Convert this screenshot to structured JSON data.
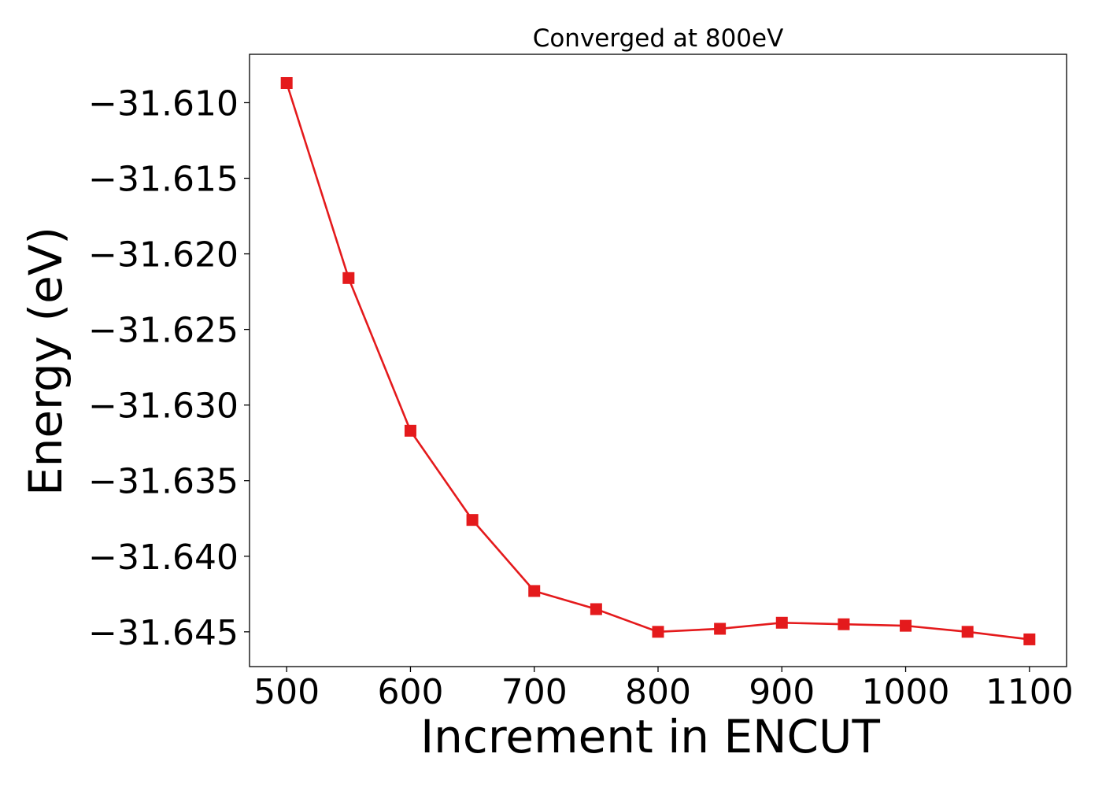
{
  "chart_data": {
    "type": "line",
    "title": "Converged at 800eV",
    "xlabel": "Increment in ENCUT",
    "ylabel": "Energy (eV)",
    "x": [
      500,
      550,
      600,
      650,
      700,
      750,
      800,
      850,
      900,
      950,
      1000,
      1050,
      1100
    ],
    "series": [
      {
        "values": [
          -31.6087,
          -31.6216,
          -31.6317,
          -31.6376,
          -31.6423,
          -31.6435,
          -31.645,
          -31.6448,
          -31.6444,
          -31.6445,
          -31.6446,
          -31.645,
          -31.6455
        ],
        "color": "#e41a1c",
        "marker": "square"
      }
    ],
    "xlim": [
      470,
      1130
    ],
    "ylim": [
      -31.6473,
      -31.6068
    ],
    "xticks": [
      500,
      600,
      700,
      800,
      900,
      1000,
      1100
    ],
    "xtick_labels": [
      "500",
      "600",
      "700",
      "800",
      "900",
      "1000",
      "1100"
    ],
    "yticks": [
      -31.61,
      -31.615,
      -31.62,
      -31.625,
      -31.63,
      -31.635,
      -31.64,
      -31.645
    ],
    "ytick_labels": [
      "−31.610",
      "−31.615",
      "−31.620",
      "−31.625",
      "−31.630",
      "−31.635",
      "−31.640",
      "−31.645"
    ],
    "grid": false,
    "legend": "none"
  }
}
